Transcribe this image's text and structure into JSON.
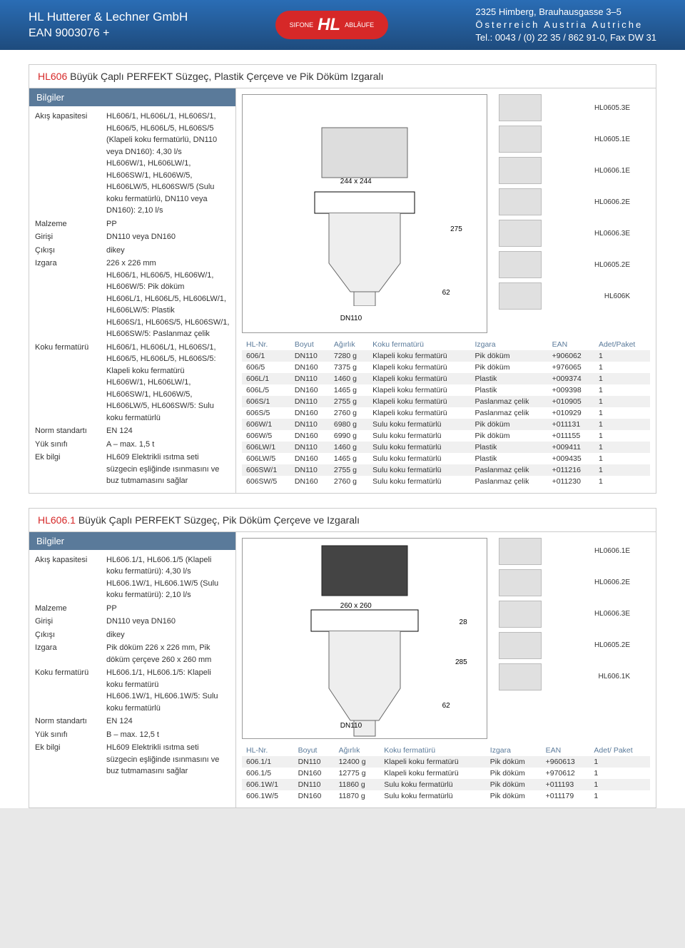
{
  "header": {
    "company": "HL Hutterer & Lechner GmbH",
    "ean": "EAN 9003076 +",
    "logo_sifone": "SIFONE",
    "logo_hl": "HL",
    "logo_ablaufe": "ABLÄUFE",
    "addr1": "2325 Himberg, Brauhausgasse 3–5",
    "addr2": "Österreich Austria Autriche",
    "addr3": "Tel.: 0043 / (0) 22 35 / 862 91-0, Fax DW 31"
  },
  "p1": {
    "code": "HL606",
    "title": "Büyük Çaplı PERFEKT Süzgeç, Plastik Çerçeve ve Pik Döküm Izgaralı",
    "info_header": "Bilgiler",
    "rows": [
      {
        "l": "Akış kapasitesi",
        "v": "HL606/1, HL606L/1, HL606S/1, HL606/5, HL606L/5, HL606S/5 (Klapeli koku fermatürlü, DN110 veya DN160): 4,30 l/s\nHL606W/1, HL606LW/1, HL606SW/1, HL606W/5, HL606LW/5, HL606SW/5 (Sulu koku fermatürlü, DN110 veya DN160): 2,10 l/s"
      },
      {
        "l": "Malzeme",
        "v": "PP"
      },
      {
        "l": "Girişi",
        "v": "DN110 veya DN160"
      },
      {
        "l": "Çıkışı",
        "v": "dikey"
      },
      {
        "l": "Izgara",
        "v": "226 x 226 mm\nHL606/1, HL606/5, HL606W/1, HL606W/5: Pik döküm\nHL606L/1, HL606L/5, HL606LW/1, HL606LW/5: Plastik\nHL606S/1, HL606S/5, HL606SW/1, HL606SW/5: Paslanmaz çelik"
      },
      {
        "l": "Koku fermatürü",
        "v": "HL606/1, HL606L/1, HL606S/1, HL606/5, HL606L/5, HL606S/5: Klapeli koku fermatürü\nHL606W/1, HL606LW/1, HL606SW/1, HL606W/5, HL606LW/5, HL606SW/5: Sulu koku fermatürlü"
      },
      {
        "l": "Norm standartı",
        "v": "EN 124"
      },
      {
        "l": "Yük sınıfı",
        "v": "A – max. 1,5 t"
      },
      {
        "l": "Ek bilgi",
        "v": "HL609 Elektrikli ısıtma seti süzgecin eşliğinde ısınmasını ve buz tutmamasını sağlar"
      }
    ],
    "drawing": {
      "dim1": "244 x 244",
      "dim2": "275",
      "dim3": "62",
      "dim4": "DN110"
    },
    "parts": [
      "HL0605.3E",
      "HL0605.1E",
      "HL0606.1E",
      "HL0606.2E",
      "HL0606.3E",
      "HL0605.2E",
      "HL606K"
    ],
    "th": [
      "HL-Nr.",
      "Boyut",
      "Ağırlık",
      "Koku fermatürü",
      "Izgara",
      "EAN",
      "Adet/Paket"
    ],
    "rows_t": [
      [
        "606/1",
        "DN110",
        "7280 g",
        "Klapeli koku fermatürü",
        "Pik döküm",
        "+906062",
        "1"
      ],
      [
        "606/5",
        "DN160",
        "7375 g",
        "Klapeli koku fermatürü",
        "Pik döküm",
        "+976065",
        "1"
      ],
      [
        "606L/1",
        "DN110",
        "1460 g",
        "Klapeli koku fermatürü",
        "Plastik",
        "+009374",
        "1"
      ],
      [
        "606L/5",
        "DN160",
        "1465 g",
        "Klapeli koku fermatürü",
        "Plastik",
        "+009398",
        "1"
      ],
      [
        "606S/1",
        "DN110",
        "2755 g",
        "Klapeli koku fermatürü",
        "Paslanmaz çelik",
        "+010905",
        "1"
      ],
      [
        "606S/5",
        "DN160",
        "2760 g",
        "Klapeli koku fermatürü",
        "Paslanmaz çelik",
        "+010929",
        "1"
      ],
      [
        "606W/1",
        "DN110",
        "6980 g",
        "Sulu koku fermatürlü",
        "Pik döküm",
        "+011131",
        "1"
      ],
      [
        "606W/5",
        "DN160",
        "6990 g",
        "Sulu koku fermatürlü",
        "Pik döküm",
        "+011155",
        "1"
      ],
      [
        "606LW/1",
        "DN110",
        "1460 g",
        "Sulu koku fermatürlü",
        "Plastik",
        "+009411",
        "1"
      ],
      [
        "606LW/5",
        "DN160",
        "1465 g",
        "Sulu koku fermatürlü",
        "Plastik",
        "+009435",
        "1"
      ],
      [
        "606SW/1",
        "DN110",
        "2755 g",
        "Sulu koku fermatürlü",
        "Paslanmaz çelik",
        "+011216",
        "1"
      ],
      [
        "606SW/5",
        "DN160",
        "2760 g",
        "Sulu koku fermatürlü",
        "Paslanmaz çelik",
        "+011230",
        "1"
      ]
    ]
  },
  "p2": {
    "code": "HL606.1",
    "title": "Büyük Çaplı PERFEKT Süzgeç, Pik Döküm Çerçeve ve Izgaralı",
    "info_header": "Bilgiler",
    "rows": [
      {
        "l": "Akış kapasitesi",
        "v": "HL606.1/1, HL606.1/5 (Klapeli koku fermatürü): 4,30 l/s\nHL606.1W/1, HL606.1W/5 (Sulu koku fermatürü): 2,10 l/s"
      },
      {
        "l": "Malzeme",
        "v": "PP"
      },
      {
        "l": "Girişi",
        "v": "DN110 veya DN160"
      },
      {
        "l": "Çıkışı",
        "v": "dikey"
      },
      {
        "l": "Izgara",
        "v": "Pik döküm 226 x 226 mm, Pik döküm çerçeve 260 x 260 mm"
      },
      {
        "l": "Koku fermatürü",
        "v": "HL606.1/1, HL606.1/5: Klapeli koku fermatürü\nHL606.1W/1, HL606.1W/5: Sulu koku fermatürlü"
      },
      {
        "l": "Norm standartı",
        "v": "EN 124"
      },
      {
        "l": "Yük sınıfı",
        "v": "B – max. 12,5 t"
      },
      {
        "l": "Ek bilgi",
        "v": "HL609 Elektrikli ısıtma seti süzgecin eşliğinde ısınmasını ve buz tutmamasını sağlar"
      }
    ],
    "drawing": {
      "dim1": "260 x 260",
      "dim2": "28",
      "dim3": "285",
      "dim4": "62",
      "dim5": "DN110"
    },
    "parts": [
      "HL0606.1E",
      "HL0606.2E",
      "HL0606.3E",
      "HL0605.2E",
      "HL606.1K"
    ],
    "th": [
      "HL-Nr.",
      "Boyut",
      "Ağırlık",
      "Koku fermatürü",
      "Izgara",
      "EAN",
      "Adet/ Paket"
    ],
    "rows_t": [
      [
        "606.1/1",
        "DN110",
        "12400 g",
        "Klapeli koku fermatürü",
        "Pik döküm",
        "+960613",
        "1"
      ],
      [
        "606.1/5",
        "DN160",
        "12775 g",
        "Klapeli koku fermatürü",
        "Pik döküm",
        "+970612",
        "1"
      ],
      [
        "606.1W/1",
        "DN110",
        "11860 g",
        "Sulu koku fermatürlü",
        "Pik döküm",
        "+011193",
        "1"
      ],
      [
        "606.1W/5",
        "DN160",
        "11870 g",
        "Sulu koku fermatürlü",
        "Pik döküm",
        "+011179",
        "1"
      ]
    ]
  }
}
